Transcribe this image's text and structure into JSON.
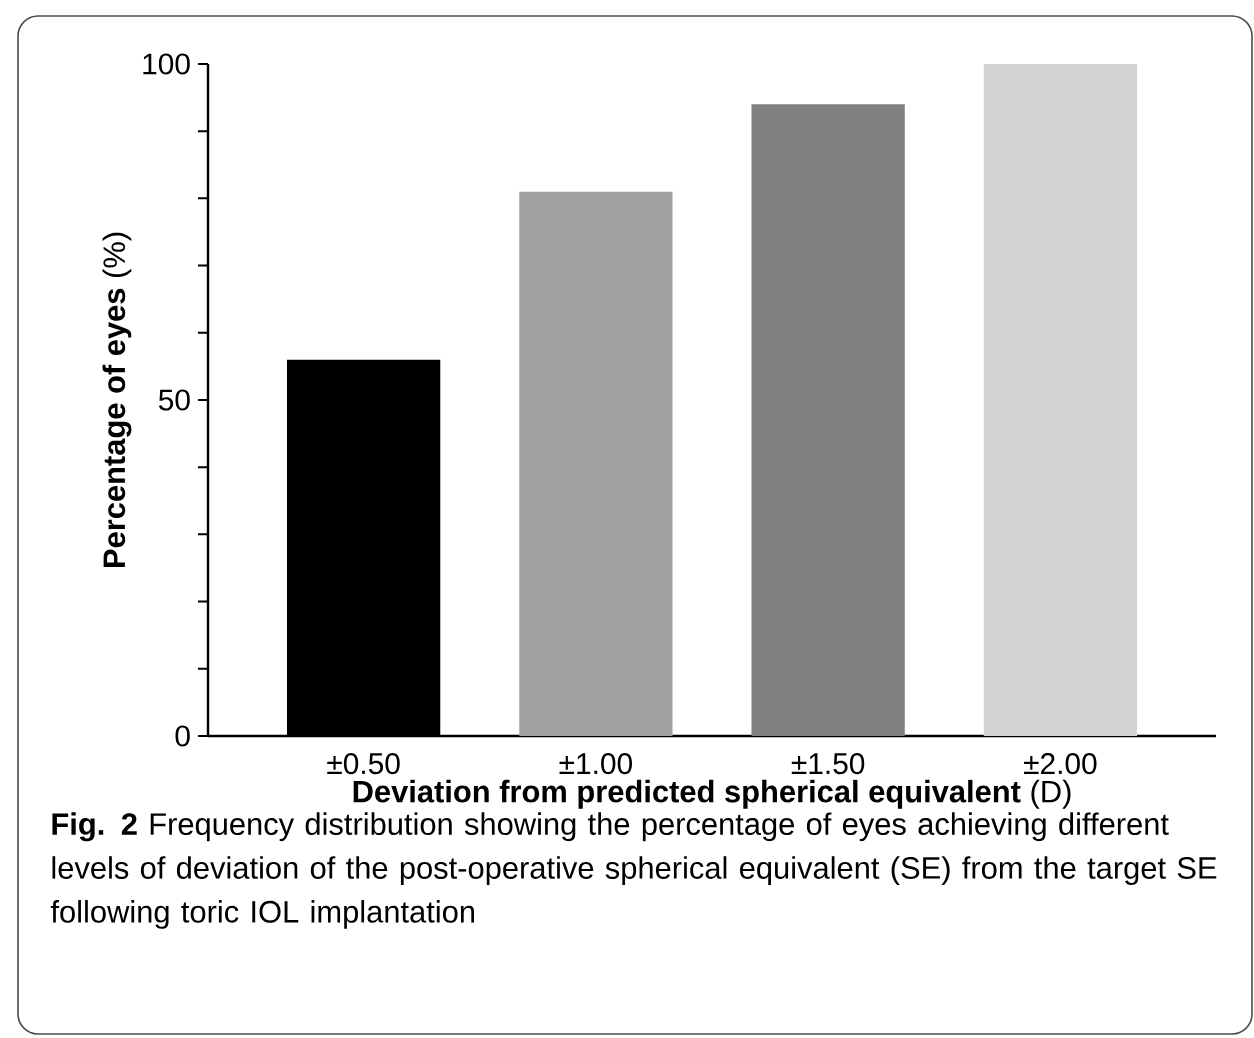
{
  "chart_data": {
    "type": "bar",
    "xlabel": "**Deviation from predicted spherical equivalent** (D)",
    "ylabel": "**Percentage of eyes** (%)",
    "categories": [
      "±0.50",
      "±1.00",
      "±1.50",
      "±2.00"
    ],
    "values": [
      56,
      81,
      94,
      100
    ],
    "colors": [
      "#000000",
      "#a0a0a0",
      "#808080",
      "#d3d3d3"
    ],
    "ylim": [
      0,
      100
    ],
    "yticks": [
      0,
      {
        "value": 10,
        "label": null
      },
      {
        "value": 20,
        "label": null
      },
      {
        "value": 30,
        "label": null
      },
      {
        "value": 40,
        "label": null
      },
      50,
      {
        "value": 60,
        "label": null
      },
      {
        "value": 70,
        "label": null
      },
      {
        "value": 80,
        "label": null
      },
      {
        "value": 90,
        "label": null
      },
      100
    ],
    "annotations": [
      "**Fig. 2** Frequency distribution showing the percentage of eyes achieving different levels of deviation of the post-operative spherical equivalent (SE) from the target SE following toric IOL implantation"
    ]
  }
}
